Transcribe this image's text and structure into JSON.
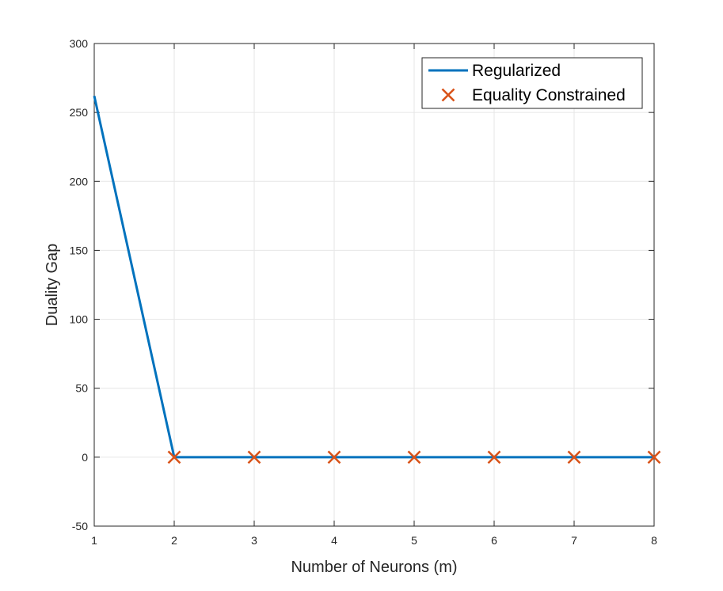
{
  "chart_data": {
    "type": "line",
    "title": "",
    "xlabel": "Number of Neurons (m)",
    "ylabel": "Duality Gap",
    "xlim": [
      1,
      8
    ],
    "ylim": [
      -50,
      300
    ],
    "xticks": [
      1,
      2,
      3,
      4,
      5,
      6,
      7,
      8
    ],
    "yticks": [
      -50,
      0,
      50,
      100,
      150,
      200,
      250,
      300
    ],
    "grid": true,
    "legend_position": "top-right",
    "series": [
      {
        "name": "Regularized",
        "style": "line",
        "color": "#0072BD",
        "x": [
          1,
          2,
          3,
          4,
          5,
          6,
          7,
          8
        ],
        "y": [
          262,
          0,
          0,
          0,
          0,
          0,
          0,
          0
        ]
      },
      {
        "name": "Equality Constrained",
        "style": "x-marker",
        "color": "#D95319",
        "x": [
          2,
          3,
          4,
          5,
          6,
          7,
          8
        ],
        "y": [
          0,
          0,
          0,
          0,
          0,
          0,
          0
        ]
      }
    ]
  }
}
